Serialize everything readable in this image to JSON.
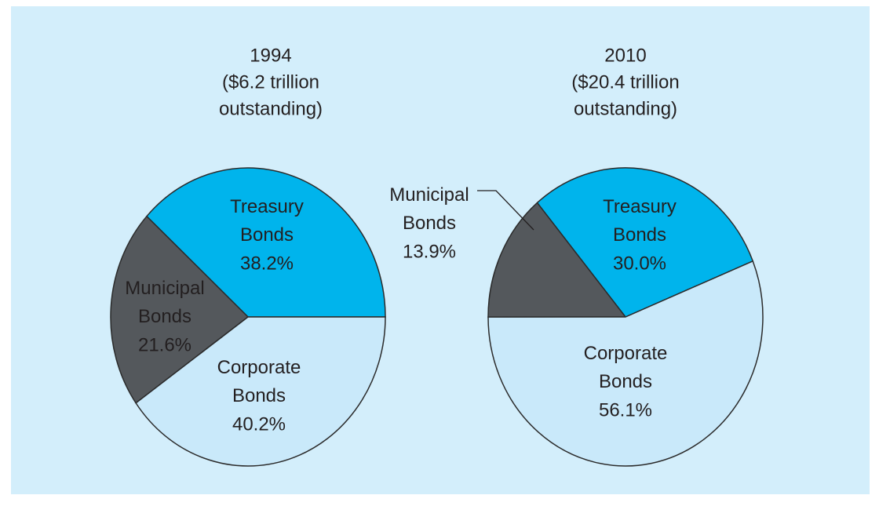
{
  "chart_data": [
    {
      "type": "pie",
      "title": [
        "1994",
        "($6.2 trillion",
        "outstanding)"
      ],
      "categories": [
        "Treasury Bonds",
        "Municipal Bonds",
        "Corporate Bonds"
      ],
      "values": [
        38.2,
        21.6,
        40.2
      ],
      "value_labels": [
        "38.2%",
        "21.6%",
        "40.2%"
      ],
      "colors": [
        "#00b4ec",
        "#54585c",
        "#c9e9fa"
      ]
    },
    {
      "type": "pie",
      "title": [
        "2010",
        "($20.4 trillion",
        "outstanding)"
      ],
      "categories": [
        "Treasury Bonds",
        "Municipal Bonds",
        "Corporate Bonds"
      ],
      "values": [
        30.0,
        13.9,
        56.1
      ],
      "value_labels": [
        "30.0%",
        "13.9%",
        "56.1%"
      ],
      "colors": [
        "#00b4ec",
        "#54585c",
        "#c9e9fa"
      ]
    }
  ]
}
